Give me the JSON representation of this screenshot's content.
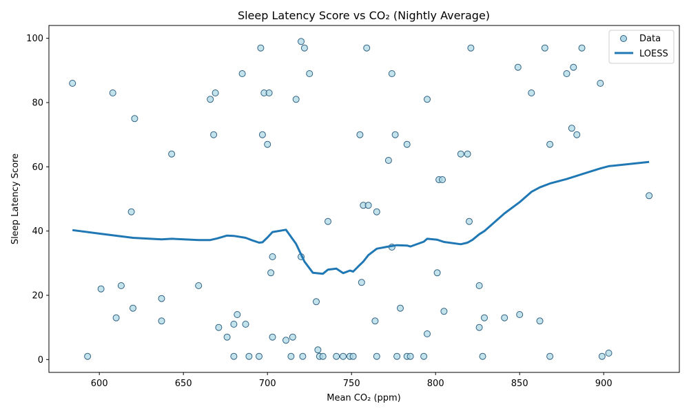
{
  "chart_data": {
    "type": "scatter",
    "title": "Sleep Latency Score vs CO₂ (Nightly Average)",
    "xlabel": "Mean CO₂ (ppm)",
    "ylabel": "Sleep Latency Score",
    "xlim": [
      570,
      945
    ],
    "ylim": [
      -4,
      104
    ],
    "xticks": [
      600,
      650,
      700,
      750,
      800,
      850,
      900
    ],
    "yticks": [
      0,
      20,
      40,
      60,
      80,
      100
    ],
    "grid": false,
    "legend_position": "top-right",
    "colors": {
      "points_fill": "#add8e6",
      "points_edge": "#2f5f7f",
      "loess_line": "#1f77b4"
    },
    "series": [
      {
        "name": "Data",
        "kind": "scatter",
        "points": [
          [
            584,
            86
          ],
          [
            593,
            1
          ],
          [
            601,
            22
          ],
          [
            608,
            83
          ],
          [
            610,
            13
          ],
          [
            613,
            23
          ],
          [
            619,
            46
          ],
          [
            620,
            16
          ],
          [
            621,
            75
          ],
          [
            637,
            12
          ],
          [
            637,
            19
          ],
          [
            643,
            64
          ],
          [
            659,
            23
          ],
          [
            666,
            81
          ],
          [
            668,
            70
          ],
          [
            669,
            83
          ],
          [
            671,
            10
          ],
          [
            676,
            7
          ],
          [
            680,
            11
          ],
          [
            680,
            1
          ],
          [
            682,
            14
          ],
          [
            685,
            89
          ],
          [
            687,
            11
          ],
          [
            689,
            1
          ],
          [
            695,
            1
          ],
          [
            696,
            97
          ],
          [
            697,
            70
          ],
          [
            698,
            83
          ],
          [
            700,
            67
          ],
          [
            701,
            83
          ],
          [
            702,
            27
          ],
          [
            703,
            32
          ],
          [
            703,
            7
          ],
          [
            711,
            6
          ],
          [
            714,
            1
          ],
          [
            715,
            7
          ],
          [
            717,
            81
          ],
          [
            720,
            32
          ],
          [
            720,
            99
          ],
          [
            721,
            1
          ],
          [
            722,
            97
          ],
          [
            725,
            89
          ],
          [
            729,
            18
          ],
          [
            730,
            3
          ],
          [
            731,
            1
          ],
          [
            733,
            1
          ],
          [
            736,
            43
          ],
          [
            741,
            1
          ],
          [
            745,
            1
          ],
          [
            749,
            1
          ],
          [
            751,
            1
          ],
          [
            755,
            70
          ],
          [
            756,
            24
          ],
          [
            757,
            48
          ],
          [
            759,
            97
          ],
          [
            760,
            48
          ],
          [
            764,
            12
          ],
          [
            765,
            46
          ],
          [
            765,
            1
          ],
          [
            772,
            62
          ],
          [
            774,
            35
          ],
          [
            774,
            89
          ],
          [
            776,
            70
          ],
          [
            777,
            1
          ],
          [
            779,
            16
          ],
          [
            783,
            67
          ],
          [
            783,
            1
          ],
          [
            785,
            1
          ],
          [
            793,
            1
          ],
          [
            795,
            81
          ],
          [
            795,
            8
          ],
          [
            801,
            27
          ],
          [
            802,
            56
          ],
          [
            804,
            56
          ],
          [
            805,
            15
          ],
          [
            815,
            64
          ],
          [
            819,
            64
          ],
          [
            820,
            43
          ],
          [
            821,
            97
          ],
          [
            826,
            23
          ],
          [
            826,
            10
          ],
          [
            828,
            1
          ],
          [
            829,
            13
          ],
          [
            841,
            13
          ],
          [
            849,
            91
          ],
          [
            850,
            14
          ],
          [
            857,
            83
          ],
          [
            862,
            12
          ],
          [
            865,
            97
          ],
          [
            868,
            67
          ],
          [
            868,
            1
          ],
          [
            878,
            89
          ],
          [
            881,
            72
          ],
          [
            882,
            91
          ],
          [
            884,
            70
          ],
          [
            887,
            97
          ],
          [
            898,
            86
          ],
          [
            899,
            1
          ],
          [
            903,
            2
          ],
          [
            927,
            51
          ]
        ]
      },
      {
        "name": "LOESS",
        "kind": "line",
        "points": [
          [
            584,
            40.3
          ],
          [
            600,
            39.2
          ],
          [
            620,
            37.9
          ],
          [
            637,
            37.4
          ],
          [
            643,
            37.6
          ],
          [
            659,
            37.2
          ],
          [
            666,
            37.2
          ],
          [
            670,
            37.7
          ],
          [
            676,
            38.6
          ],
          [
            680,
            38.5
          ],
          [
            687,
            37.9
          ],
          [
            691,
            37.1
          ],
          [
            695,
            36.4
          ],
          [
            697,
            36.5
          ],
          [
            700,
            38.0
          ],
          [
            703,
            39.7
          ],
          [
            711,
            40.4
          ],
          [
            717,
            36.0
          ],
          [
            722,
            30.5
          ],
          [
            727,
            27.0
          ],
          [
            733,
            26.7
          ],
          [
            736,
            28.0
          ],
          [
            741,
            28.3
          ],
          [
            745,
            26.9
          ],
          [
            749,
            27.7
          ],
          [
            751,
            27.4
          ],
          [
            755,
            29.5
          ],
          [
            757,
            30.5
          ],
          [
            760,
            32.5
          ],
          [
            765,
            34.5
          ],
          [
            772,
            35.2
          ],
          [
            777,
            35.6
          ],
          [
            783,
            35.5
          ],
          [
            785,
            35.2
          ],
          [
            793,
            36.7
          ],
          [
            795,
            37.6
          ],
          [
            801,
            37.3
          ],
          [
            805,
            36.6
          ],
          [
            815,
            35.9
          ],
          [
            819,
            36.4
          ],
          [
            822,
            37.3
          ],
          [
            826,
            39.0
          ],
          [
            829,
            40.0
          ],
          [
            841,
            45.5
          ],
          [
            850,
            49.0
          ],
          [
            857,
            52.2
          ],
          [
            862,
            53.6
          ],
          [
            868,
            54.8
          ],
          [
            878,
            56.2
          ],
          [
            887,
            57.7
          ],
          [
            898,
            59.5
          ],
          [
            903,
            60.2
          ],
          [
            927,
            61.5
          ]
        ]
      }
    ]
  }
}
